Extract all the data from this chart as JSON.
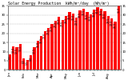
{
  "title": "Solar Energy Production  kWh/m²/day  (Wh/m²)",
  "bar_color": "#FF0000",
  "background_color": "#FFFFFF",
  "plot_bg_color": "#FFFFFF",
  "grid_color": "#AAAAAA",
  "ylim": [
    0,
    35
  ],
  "yticks": [
    0,
    5,
    10,
    15,
    20,
    25,
    30,
    35
  ],
  "values": [
    8.5,
    13.0,
    12.5,
    14.0,
    6.5,
    5.5,
    8.0,
    12.5,
    16.0,
    18.5,
    21.0,
    23.0,
    25.0,
    27.0,
    29.0,
    27.5,
    29.5,
    31.5,
    31.0,
    28.5,
    32.5,
    33.5,
    31.5,
    30.5,
    33.0,
    34.5,
    33.5,
    32.0,
    29.5,
    28.0,
    26.5,
    35.0
  ],
  "xlabel_months": [
    "Jan",
    "",
    "",
    "",
    "Feb",
    "",
    "",
    "",
    "Mar",
    "",
    "",
    "",
    "Apr",
    "",
    "",
    "",
    "May",
    "",
    "",
    "",
    "Jun",
    "",
    "",
    "",
    "Jul",
    "",
    "",
    "",
    "Aug",
    "",
    "",
    ""
  ],
  "value_labels": [
    "8.5",
    "13.0",
    "12.5",
    "14.0",
    "6.5",
    "5.5",
    "8.0",
    "12.5",
    "16.0",
    "18.5",
    "21.0",
    "23.0",
    "25.0",
    "27.0",
    "29.0",
    "27.5",
    "29.5",
    "31.5",
    "31.0",
    "28.5",
    "32.5",
    "33.5",
    "31.5",
    "30.5",
    "33.0",
    "34.5",
    "33.5",
    "32.0",
    "29.5",
    "28.0",
    "26.5",
    "35.0"
  ],
  "title_fontsize": 3.5,
  "tick_fontsize": 2.8,
  "value_fontsize": 2.3,
  "bar_width": 0.75
}
